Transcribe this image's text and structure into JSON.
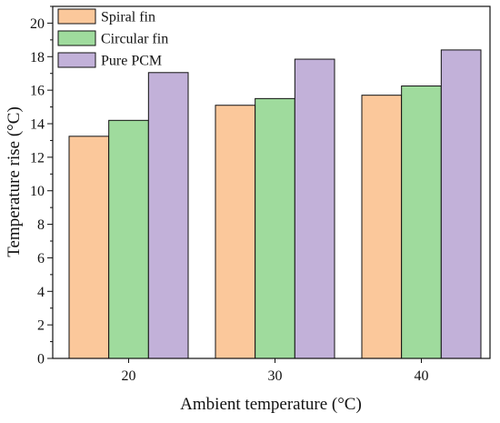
{
  "chart_data": {
    "type": "bar",
    "xlabel": "Ambient temperature (°C)",
    "ylabel": "Temperature rise (°C)",
    "ylim": [
      0,
      21
    ],
    "yticks": [
      0,
      2,
      4,
      6,
      8,
      10,
      12,
      14,
      16,
      18,
      20
    ],
    "categories": [
      "20",
      "30",
      "40"
    ],
    "series": [
      {
        "name": "Spiral fin",
        "values": [
          13.25,
          15.1,
          15.7
        ],
        "color": "#FBC89B"
      },
      {
        "name": "Circular fin",
        "values": [
          14.2,
          15.5,
          16.25
        ],
        "color": "#9FDB9D"
      },
      {
        "name": "Pure PCM",
        "values": [
          17.05,
          17.85,
          18.4
        ],
        "color": "#C2B1D9"
      }
    ],
    "legend_position": "top-left",
    "grid": false
  }
}
